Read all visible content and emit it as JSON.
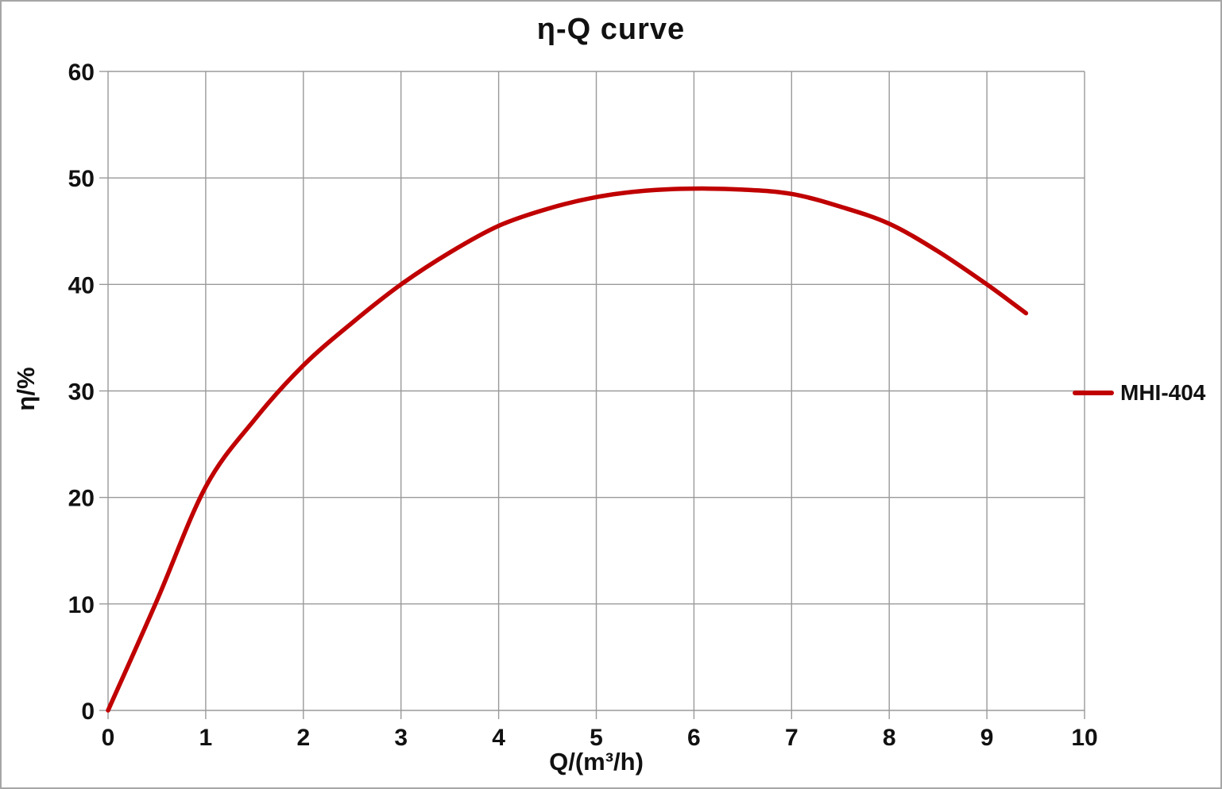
{
  "chart_data": {
    "type": "line",
    "title": "η-Q  curve",
    "xlabel": "Q/(m³/h)",
    "ylabel": "η/%",
    "xlim": [
      0,
      10
    ],
    "ylim": [
      0,
      60
    ],
    "x_ticks": [
      0,
      1,
      2,
      3,
      4,
      5,
      6,
      7,
      8,
      9,
      10
    ],
    "y_ticks": [
      0,
      10,
      20,
      30,
      40,
      50,
      60
    ],
    "grid": true,
    "legend_position": "right",
    "series": [
      {
        "name": "MHI-404",
        "color": "#c00000",
        "points": [
          {
            "q": 0.0,
            "eta": 0.0
          },
          {
            "q": 0.5,
            "eta": 10.3
          },
          {
            "q": 1.0,
            "eta": 21.0
          },
          {
            "q": 1.5,
            "eta": 27.3
          },
          {
            "q": 2.0,
            "eta": 32.4
          },
          {
            "q": 2.5,
            "eta": 36.4
          },
          {
            "q": 3.0,
            "eta": 40.0
          },
          {
            "q": 3.5,
            "eta": 43.0
          },
          {
            "q": 4.0,
            "eta": 45.5
          },
          {
            "q": 4.5,
            "eta": 47.1
          },
          {
            "q": 5.0,
            "eta": 48.2
          },
          {
            "q": 5.5,
            "eta": 48.8
          },
          {
            "q": 6.0,
            "eta": 49.0
          },
          {
            "q": 6.5,
            "eta": 48.9
          },
          {
            "q": 7.0,
            "eta": 48.5
          },
          {
            "q": 7.5,
            "eta": 47.3
          },
          {
            "q": 8.0,
            "eta": 45.7
          },
          {
            "q": 8.5,
            "eta": 43.1
          },
          {
            "q": 9.0,
            "eta": 40.0
          },
          {
            "q": 9.4,
            "eta": 37.3
          }
        ]
      }
    ],
    "colors": {
      "curve": "#c00000",
      "gridline": "#9a9a9a",
      "text": "#111111",
      "background": "#ffffff",
      "outer_border": "#a6a6a6"
    }
  }
}
